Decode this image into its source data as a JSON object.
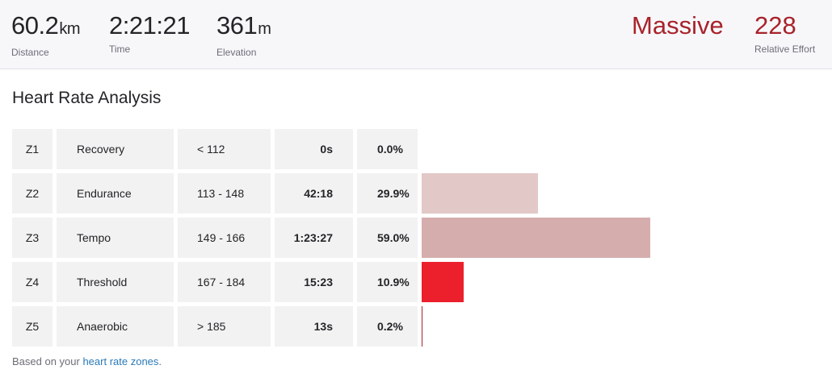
{
  "summary": {
    "distance": {
      "value": "60.2",
      "unit": "km",
      "label": "Distance"
    },
    "time": {
      "value": "2:21:21",
      "label": "Time"
    },
    "elevation": {
      "value": "361",
      "unit": "m",
      "label": "Elevation"
    },
    "effort_word": "Massive",
    "relative_effort": {
      "value": "228",
      "label": "Relative Effort"
    }
  },
  "section_title": "Heart Rate Analysis",
  "zones": [
    {
      "id": "Z1",
      "name": "Recovery",
      "range": "< 112",
      "time": "0s",
      "percent": "0.0%",
      "fraction": 0.0,
      "color": "#e9cccc"
    },
    {
      "id": "Z2",
      "name": "Endurance",
      "range": "113 - 148",
      "time": "42:18",
      "percent": "29.9%",
      "fraction": 0.299,
      "color": "#e3c8c8"
    },
    {
      "id": "Z3",
      "name": "Tempo",
      "range": "149 - 166",
      "time": "1:23:27",
      "percent": "59.0%",
      "fraction": 0.59,
      "color": "#d5adad"
    },
    {
      "id": "Z4",
      "name": "Threshold",
      "range": "167 - 184",
      "time": "15:23",
      "percent": "10.9%",
      "fraction": 0.109,
      "color": "#ec1f2c"
    },
    {
      "id": "Z5",
      "name": "Anaerobic",
      "range": "> 185",
      "time": "13s",
      "percent": "0.2%",
      "fraction": 0.002,
      "color": "#a8232a"
    }
  ],
  "footnote": {
    "prefix": "Based on your ",
    "link": "heart rate zones",
    "suffix": "."
  }
}
